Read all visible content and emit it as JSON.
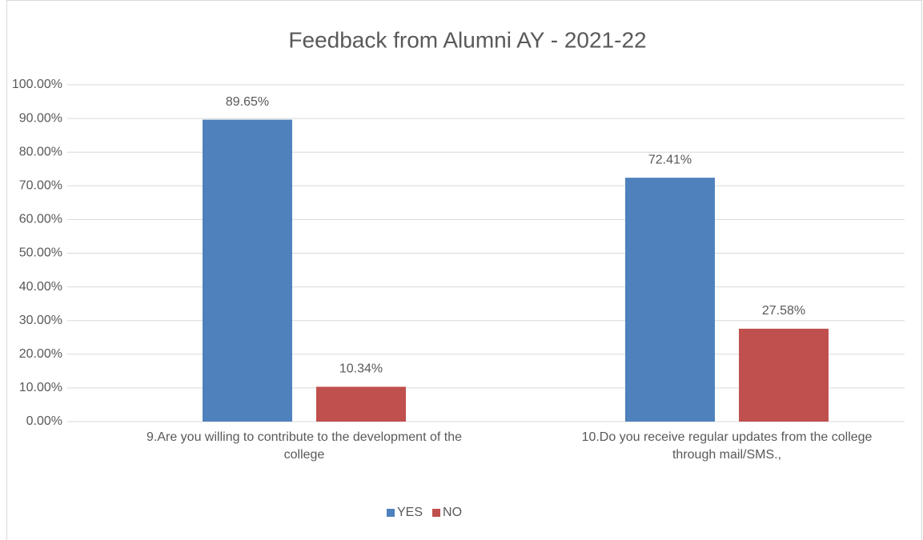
{
  "chart_data": {
    "type": "bar",
    "title": "Feedback from Alumni AY - 2021-22",
    "categories": [
      "9.Are you willing to contribute to the development of the college",
      "10.Do you receive regular updates from the college through mail/SMS.,"
    ],
    "series": [
      {
        "name": "YES",
        "color": "#4f81bd",
        "values": [
          89.65,
          72.41
        ],
        "value_labels": [
          "89.65%",
          "72.41%"
        ]
      },
      {
        "name": "NO",
        "color": "#c0504d",
        "values": [
          10.34,
          27.58
        ],
        "value_labels": [
          "10.34%",
          "27.58%"
        ]
      }
    ],
    "ylim": [
      0,
      100
    ],
    "yticks": [
      {
        "value": 0,
        "label": "0.00%"
      },
      {
        "value": 10,
        "label": "10.00%"
      },
      {
        "value": 20,
        "label": "20.00%"
      },
      {
        "value": 30,
        "label": "30.00%"
      },
      {
        "value": 40,
        "label": "40.00%"
      },
      {
        "value": 50,
        "label": "50.00%"
      },
      {
        "value": 60,
        "label": "60.00%"
      },
      {
        "value": 70,
        "label": "70.00%"
      },
      {
        "value": 80,
        "label": "80.00%"
      },
      {
        "value": 90,
        "label": "90.00%"
      },
      {
        "value": 100,
        "label": "100.00%"
      }
    ],
    "grid": true,
    "legend": "bottom"
  }
}
